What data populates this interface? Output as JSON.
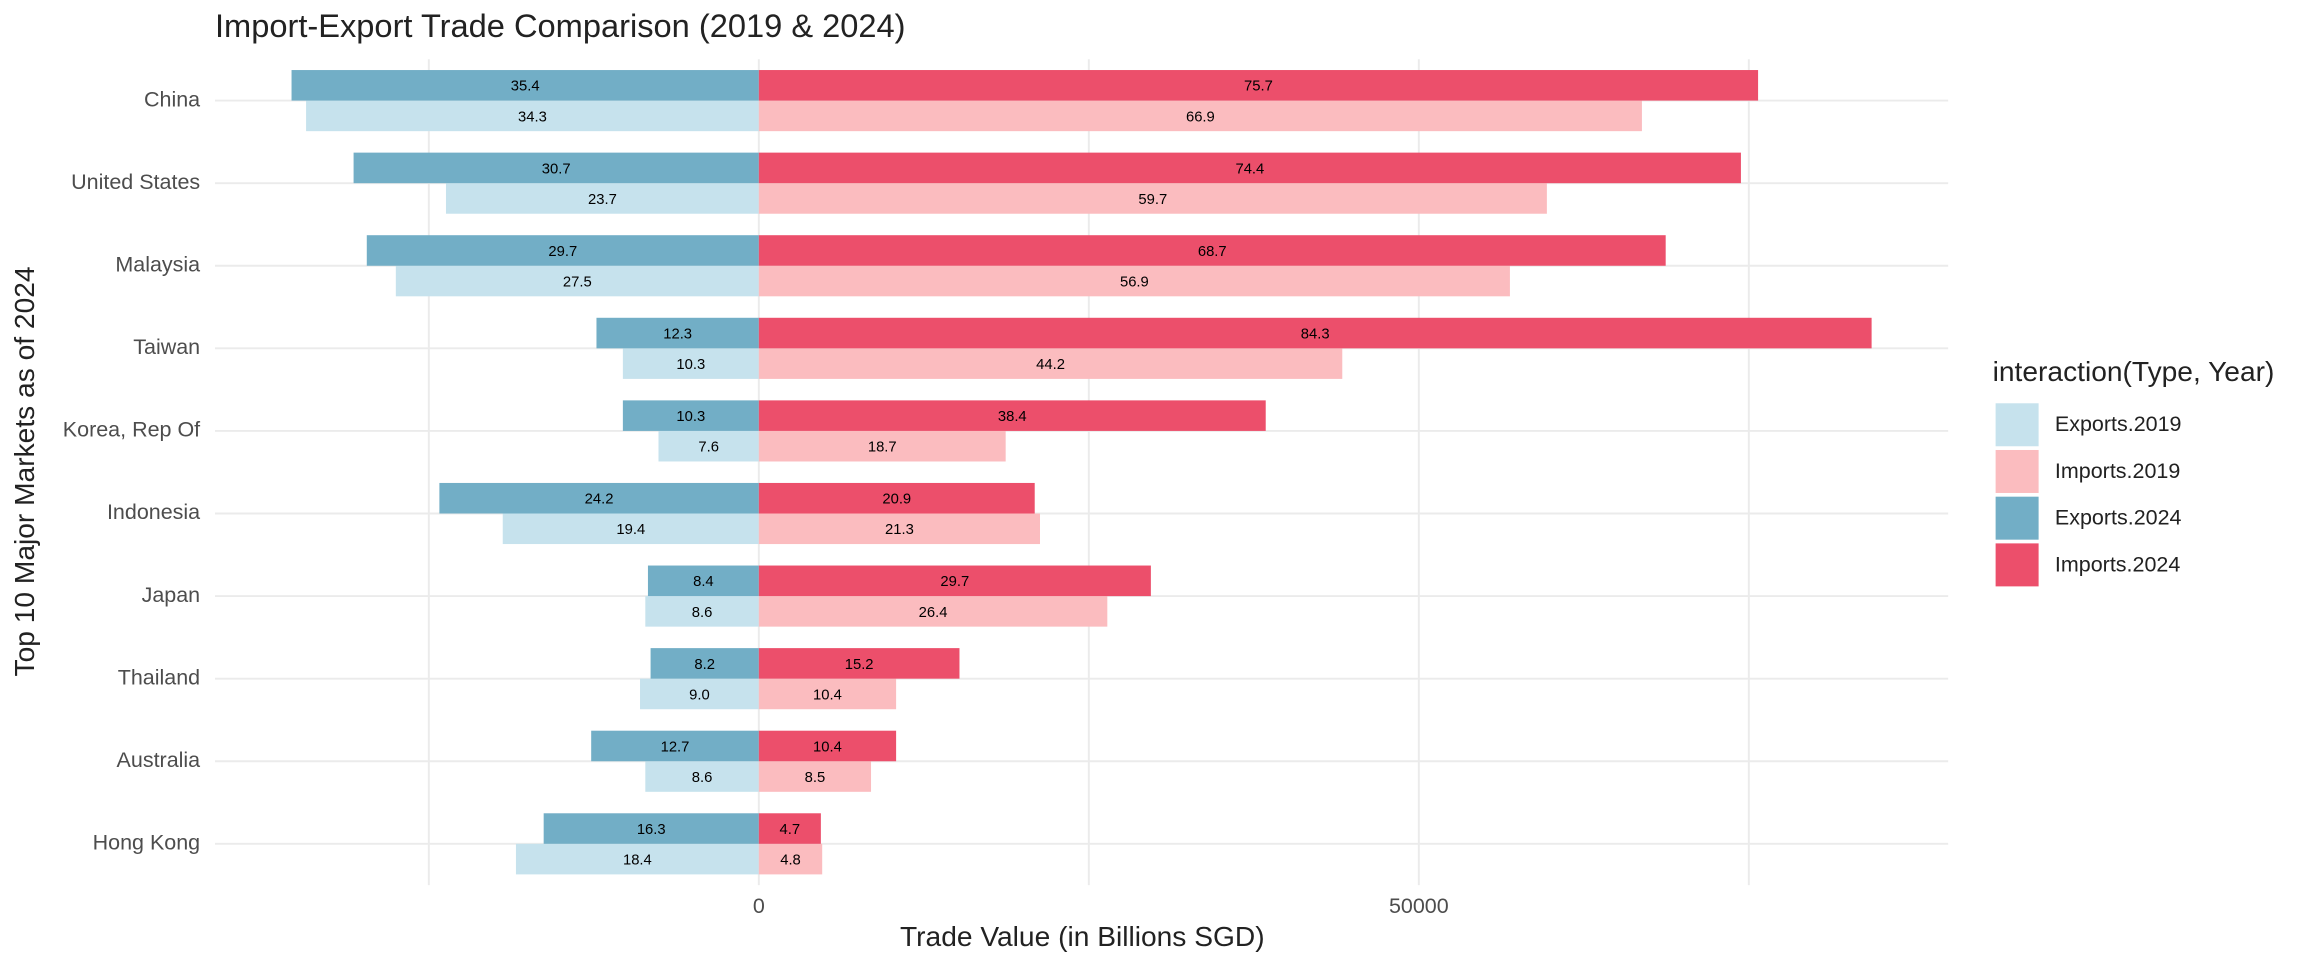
{
  "chart_data": {
    "type": "bar",
    "orientation": "horizontal",
    "title": "Import-Export Trade Comparison (2019 & 2024)",
    "xlabel": "Trade Value (in Billions SGD)",
    "ylabel": "Top 10 Major Markets as of 2024",
    "legend_title": "interaction(Type, Year)",
    "legend_position": "right",
    "grid": true,
    "categories": [
      "China",
      "United States",
      "Malaysia",
      "Taiwan",
      "Korea, Rep Of",
      "Indonesia",
      "Japan",
      "Thailand",
      "Australia",
      "Hong Kong"
    ],
    "xlim": [
      -41200,
      90100
    ],
    "xticks": [
      0,
      50000
    ],
    "xminor": [
      -25000,
      25000,
      75000
    ],
    "series": [
      {
        "name": "Exports.2019",
        "color": "#c6e2ed",
        "values": [
          -34300,
          -23700,
          -27500,
          -10300,
          -7600,
          -19400,
          -8600,
          -9000,
          -8600,
          -18400
        ],
        "value_labels": [
          "34.3",
          "23.7",
          "27.5",
          "10.3",
          "7.6",
          "19.4",
          "8.6",
          "9.0",
          "8.6",
          "18.4"
        ]
      },
      {
        "name": "Imports.2019",
        "color": "#fbbcbf",
        "values": [
          66900,
          59700,
          56900,
          44200,
          18700,
          21300,
          26400,
          10400,
          8500,
          4800
        ],
        "value_labels": [
          "66.9",
          "59.7",
          "56.9",
          "44.2",
          "18.7",
          "21.3",
          "26.4",
          "10.4",
          "8.5",
          "4.8"
        ]
      },
      {
        "name": "Exports.2024",
        "color": "#72aec6",
        "values": [
          -35400,
          -30700,
          -29700,
          -12300,
          -10300,
          -24200,
          -8400,
          -8200,
          -12700,
          -16300
        ],
        "value_labels": [
          "35.4",
          "30.7",
          "29.7",
          "12.3",
          "10.3",
          "24.2",
          "8.4",
          "8.2",
          "12.7",
          "16.3"
        ]
      },
      {
        "name": "Imports.2024",
        "color": "#ec4f6b",
        "values": [
          75700,
          74400,
          68700,
          84300,
          38400,
          20900,
          29700,
          15200,
          10400,
          4700
        ],
        "value_labels": [
          "75.7",
          "74.4",
          "68.7",
          "84.3",
          "38.4",
          "20.9",
          "29.7",
          "15.2",
          "10.4",
          "4.7"
        ]
      }
    ]
  }
}
